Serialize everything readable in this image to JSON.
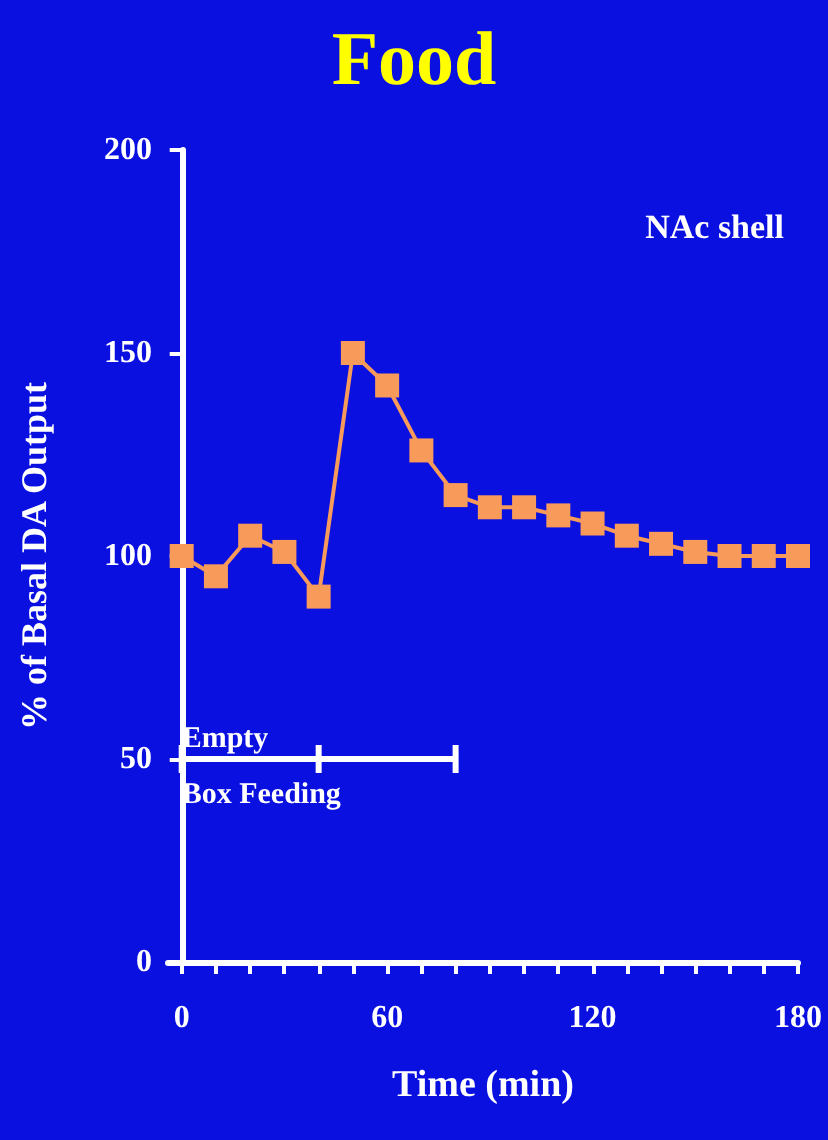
{
  "chart_data": {
    "type": "line",
    "title": "Food",
    "xlabel": "Time (min)",
    "ylabel": "% of Basal DA Output",
    "x": [
      0,
      10,
      20,
      30,
      40,
      50,
      60,
      70,
      80,
      90,
      100,
      110,
      120,
      130,
      140,
      150,
      160,
      170,
      180
    ],
    "series": [
      {
        "color": "#f79a5a",
        "marker": "square",
        "values": [
          100,
          95,
          105,
          101,
          90,
          150,
          142,
          126,
          115,
          112,
          112,
          110,
          108,
          105,
          103,
          101,
          100,
          100,
          100
        ]
      },
      {
        "color": "#ffffff",
        "marker": "none",
        "x": [
          0,
          40,
          80
        ],
        "values": [
          50,
          50,
          50
        ]
      }
    ],
    "line_style": "solid",
    "grid": false,
    "xlim": [
      -4,
      180
    ],
    "xticks": [
      0,
      {
        "value": 10,
        "label": null
      },
      {
        "value": 20,
        "label": null
      },
      {
        "value": 30,
        "label": null
      },
      {
        "value": 40,
        "label": null
      },
      {
        "value": 50,
        "label": null
      },
      60,
      {
        "value": 70,
        "label": null
      },
      {
        "value": 80,
        "label": null
      },
      {
        "value": 90,
        "label": null
      },
      {
        "value": 100,
        "label": null
      },
      {
        "value": 110,
        "label": null
      },
      120,
      {
        "value": 130,
        "label": null
      },
      {
        "value": 140,
        "label": null
      },
      {
        "value": 150,
        "label": null
      },
      {
        "value": 160,
        "label": null
      },
      {
        "value": 170,
        "label": null
      },
      180
    ],
    "ylim": [
      0,
      200
    ],
    "yticks": [
      0,
      50,
      100,
      150,
      200
    ],
    "annotations": [
      "NAc shell",
      {
        "text": "Empty",
        "x": 0,
        "y": 50
      },
      {
        "text": "Box Feeding",
        "x": 0,
        "y": 50
      }
    ]
  }
}
